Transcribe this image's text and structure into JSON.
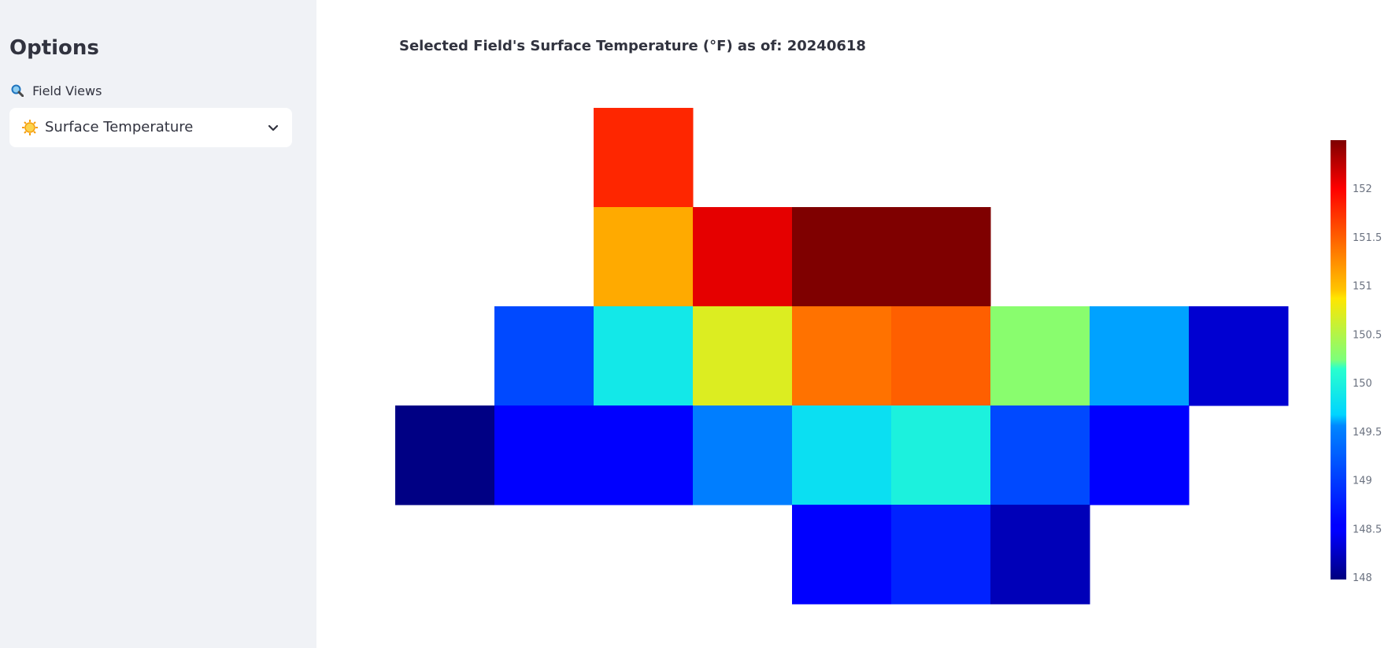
{
  "sidebar": {
    "title": "Options",
    "field_views_label": "Field Views",
    "selected_view": "Surface Temperature"
  },
  "chart_title": "Selected Field's Surface Temperature (°F) as of: 20240618",
  "chart_data": {
    "type": "heatmap",
    "title": "Selected Field's Surface Temperature (°F) as of: 20240618",
    "colorscale": "jet",
    "zmin": 147.98,
    "zmax": 152.5,
    "colorbar_ticks": [
      148,
      148.5,
      149,
      149.5,
      150,
      150.5,
      151,
      151.5,
      152
    ],
    "colorbar_tick_labels": [
      "148",
      "148.5",
      "149",
      "149.5",
      "150",
      "150.5",
      "151",
      "151.5",
      "152"
    ],
    "rows": [
      [
        null,
        null,
        151.8,
        null,
        null,
        null,
        null,
        null,
        null
      ],
      [
        null,
        null,
        151.1,
        152.1,
        152.5,
        152.5,
        null,
        null,
        null
      ],
      [
        null,
        149.1,
        149.9,
        150.7,
        151.4,
        151.5,
        150.3,
        149.6,
        148.3
      ],
      [
        148.0,
        148.5,
        148.5,
        149.5,
        149.8,
        150.0,
        149.1,
        148.5,
        null
      ],
      [
        null,
        null,
        null,
        null,
        148.5,
        148.8,
        148.2,
        null,
        null
      ]
    ]
  }
}
